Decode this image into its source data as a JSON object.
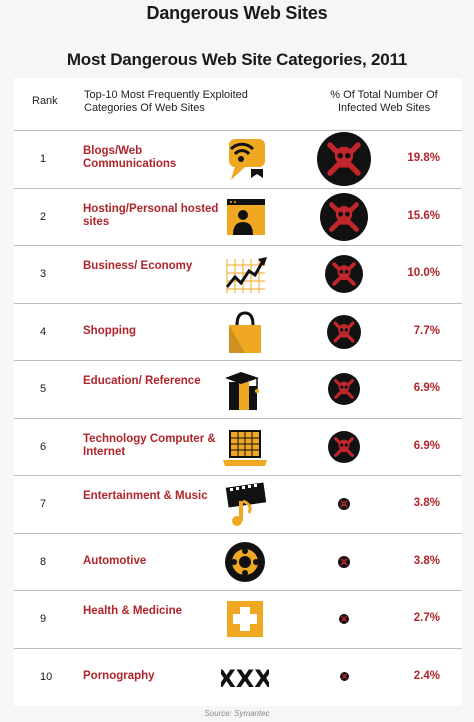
{
  "page_title": "Dangerous Web Sites",
  "source": "Source: Symantec",
  "colors": {
    "accent": "#b0252b",
    "icon_orange": "#f0a722",
    "skull_dark": "#111111",
    "skull_red": "#c0262c"
  },
  "table": {
    "headers": {
      "rank": "Rank",
      "category": "Top-10 Most Frequently Exploited Categories Of Web Sites",
      "pct": "% Of Total Number Of Infected Web Sites"
    }
  },
  "chart_data": {
    "type": "table",
    "title": "Most Dangerous Web Site Categories, 2011",
    "unit": "%",
    "rows": [
      {
        "rank": "1",
        "category": "Blogs/Web Communications",
        "value": 19.8,
        "label": "19.8%",
        "icon": "wifi-chat-icon"
      },
      {
        "rank": "2",
        "category": "Hosting/Personal hosted sites",
        "value": 15.6,
        "label": "15.6%",
        "icon": "profile-page-icon"
      },
      {
        "rank": "3",
        "category": "Business/ Economy",
        "value": 10.0,
        "label": "10.0%",
        "icon": "growth-chart-icon"
      },
      {
        "rank": "4",
        "category": "Shopping",
        "value": 7.7,
        "label": "7.7%",
        "icon": "shopping-bag-icon"
      },
      {
        "rank": "5",
        "category": "Education/ Reference",
        "value": 6.9,
        "label": "6.9%",
        "icon": "books-graduation-icon"
      },
      {
        "rank": "6",
        "category": "Technology Computer & Internet",
        "value": 6.9,
        "label": "6.9%",
        "icon": "laptop-icon"
      },
      {
        "rank": "7",
        "category": "Entertainment & Music",
        "value": 3.8,
        "label": "3.8%",
        "icon": "film-music-icon"
      },
      {
        "rank": "8",
        "category": "Automotive",
        "value": 3.8,
        "label": "3.8%",
        "icon": "wheel-icon"
      },
      {
        "rank": "9",
        "category": "Health & Medicine",
        "value": 2.7,
        "label": "2.7%",
        "icon": "medical-cross-icon"
      },
      {
        "rank": "10",
        "category": "Pornography",
        "value": 2.4,
        "label": "2.4%",
        "icon": "xxx-icon"
      }
    ]
  }
}
